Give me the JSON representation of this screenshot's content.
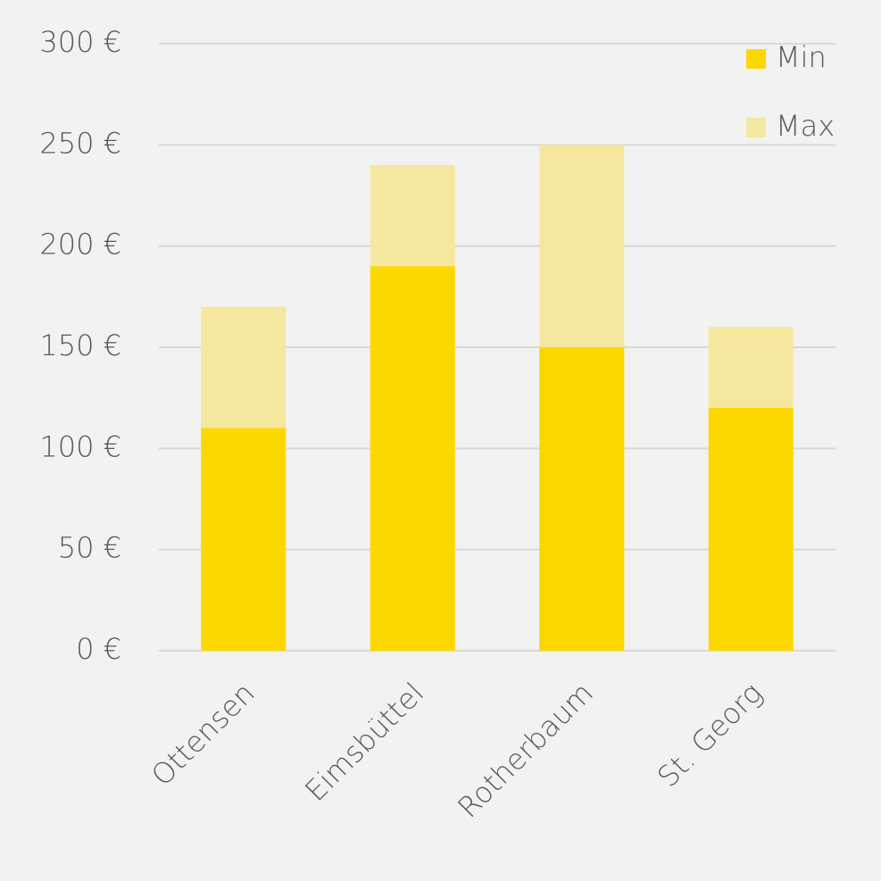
{
  "chart_data": {
    "type": "bar",
    "barmode": "overlay",
    "categories": [
      "Ottensen",
      "Eimsbüttel",
      "Rotherbaum",
      "St. Georg"
    ],
    "series": [
      {
        "name": "Min",
        "color": "#fdd800",
        "values": [
          110,
          190,
          150,
          120
        ]
      },
      {
        "name": "Max",
        "color": "#f5e79e",
        "values": [
          170,
          240,
          250,
          160
        ]
      }
    ],
    "ylim": [
      0,
      300
    ],
    "yticks": [
      {
        "value": 0,
        "label": "0 €"
      },
      {
        "value": 50,
        "label": "50 €"
      },
      {
        "value": 100,
        "label": "100 €"
      },
      {
        "value": 150,
        "label": "150 €"
      },
      {
        "value": 200,
        "label": "200 €"
      },
      {
        "value": 250,
        "label": "250 €"
      },
      {
        "value": 300,
        "label": "300 €"
      }
    ],
    "grid": true,
    "legend": "top-right"
  }
}
